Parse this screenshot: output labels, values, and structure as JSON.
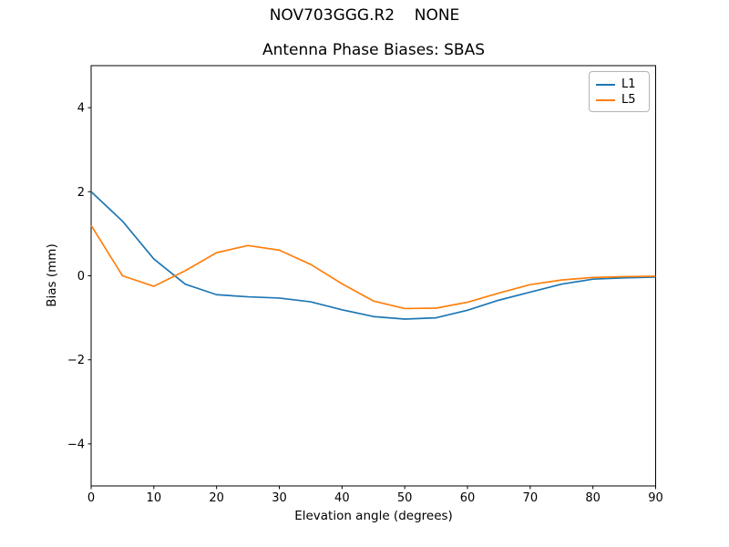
{
  "header": {
    "suptitle": "NOV703GGG.R2    NONE",
    "title": "Antenna Phase Biases: SBAS"
  },
  "axes": {
    "xlabel": "Elevation angle (degrees)",
    "ylabel": "Bias (mm)"
  },
  "legend": {
    "position": "upper right",
    "entries": [
      {
        "label": "L1",
        "color": "#1f77b4"
      },
      {
        "label": "L5",
        "color": "#ff7f0e"
      }
    ]
  },
  "colors": {
    "l1": "#1f77b4",
    "l5": "#ff7f0e",
    "axis": "#000000",
    "legend_border": "#b3b3b3",
    "background": "#ffffff"
  },
  "chart_data": {
    "type": "line",
    "suptitle": "NOV703GGG.R2    NONE",
    "title": "Antenna Phase Biases: SBAS",
    "xlabel": "Elevation angle (degrees)",
    "ylabel": "Bias (mm)",
    "xlim": [
      0,
      90
    ],
    "ylim": [
      -5,
      5
    ],
    "xticks": [
      0,
      10,
      20,
      30,
      40,
      50,
      60,
      70,
      80,
      90
    ],
    "yticks": [
      -4,
      -2,
      0,
      2,
      4
    ],
    "grid": false,
    "legend_position": "upper right",
    "x": [
      0,
      5,
      10,
      15,
      20,
      25,
      30,
      35,
      40,
      45,
      50,
      55,
      60,
      65,
      70,
      75,
      80,
      85,
      90
    ],
    "series": [
      {
        "name": "L1",
        "color": "#1f77b4",
        "values": [
          2.0,
          1.3,
          0.4,
          -0.2,
          -0.45,
          -0.5,
          -0.53,
          -0.62,
          -0.81,
          -0.97,
          -1.03,
          -1.0,
          -0.82,
          -0.58,
          -0.39,
          -0.2,
          -0.08,
          -0.05,
          -0.03
        ]
      },
      {
        "name": "L5",
        "color": "#ff7f0e",
        "values": [
          1.2,
          0.0,
          -0.25,
          0.12,
          0.55,
          0.72,
          0.61,
          0.27,
          -0.19,
          -0.6,
          -0.78,
          -0.77,
          -0.63,
          -0.41,
          -0.21,
          -0.1,
          -0.04,
          -0.02,
          -0.01
        ]
      }
    ]
  }
}
